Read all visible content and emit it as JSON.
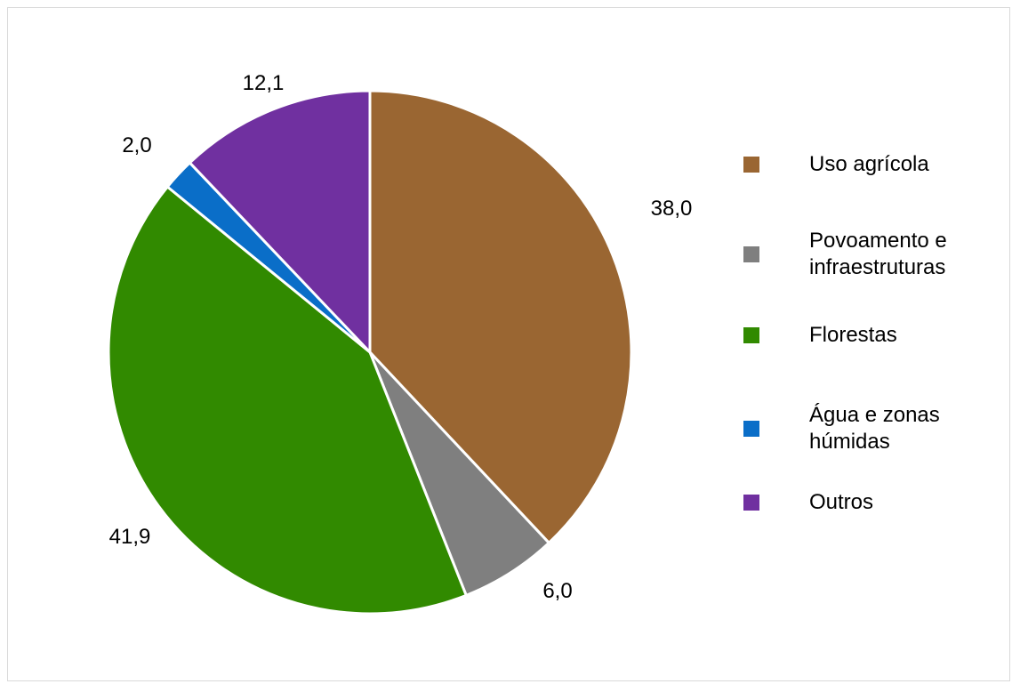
{
  "chart_data": {
    "type": "pie",
    "title": "",
    "start": "top",
    "direction": "clockwise",
    "slices": [
      {
        "label": "Uso agrícola",
        "value": 38.0,
        "value_label": "38,0",
        "color": "#9a6632"
      },
      {
        "label": "Povoamento e infraestruturas",
        "value": 6.0,
        "value_label": "6,0",
        "color": "#7f7f7f"
      },
      {
        "label": "Florestas",
        "value": 41.9,
        "value_label": "41,9",
        "color": "#318a00"
      },
      {
        "label": "Água e zonas húmidas",
        "value": 2.0,
        "value_label": "2,0",
        "color": "#0a6ec8"
      },
      {
        "label": "Outros",
        "value": 12.1,
        "value_label": "12,1",
        "color": "#7030a0"
      }
    ],
    "legend": {
      "position": "right",
      "entries": [
        {
          "lines": [
            "Uso agrícola"
          ],
          "color": "#9a6632"
        },
        {
          "lines": [
            "Povoamento e",
            "infraestruturas"
          ],
          "color": "#7f7f7f"
        },
        {
          "lines": [
            "Florestas"
          ],
          "color": "#318a00"
        },
        {
          "lines": [
            "Água e zonas",
            "húmidas"
          ],
          "color": "#0a6ec8"
        },
        {
          "lines": [
            "Outros"
          ],
          "color": "#7030a0"
        }
      ]
    }
  }
}
